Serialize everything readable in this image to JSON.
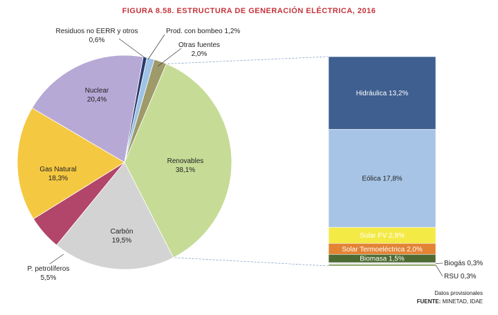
{
  "title": "FIGURA 8.58.  ESTRUCTURA DE GENERACIÓN ELÉCTRICA, 2016",
  "source": {
    "note": "Datos provisionales",
    "label": "FUENTE:",
    "value": "MINETAD, IDAE"
  },
  "chart_data": [
    {
      "type": "pie",
      "slices": [
        {
          "name": "Renovables",
          "value": 38.1,
          "value_label": "38,1%",
          "color": "#c6dc96"
        },
        {
          "name": "Carbón",
          "value": 19.5,
          "value_label": "19,5%",
          "color": "#d3d3d3"
        },
        {
          "name": "P. petrolíferos",
          "value": 5.5,
          "value_label": "5,5%",
          "color": "#b2456a"
        },
        {
          "name": "Gas Natural",
          "value": 18.3,
          "value_label": "18,3%",
          "color": "#f5c842"
        },
        {
          "name": "Nuclear",
          "value": 20.4,
          "value_label": "20,4%",
          "color": "#b7a9d6"
        },
        {
          "name": "Residuos no EERR y otros",
          "value": 0.6,
          "value_label": "0,6%",
          "color": "#2a3a6b"
        },
        {
          "name": "Prod. con bombeo",
          "value": 1.2,
          "value_label": "1,2%",
          "color": "#9dc3e6"
        },
        {
          "name": "Otras fuentes",
          "value": 2.0,
          "value_label": "2,0%",
          "color": "#9e9a6a"
        }
      ]
    },
    {
      "type": "bar",
      "stacked": true,
      "series": [
        {
          "name": "Hidráulica",
          "value": 13.2,
          "value_label": "13,2%",
          "color": "#3e5f8f"
        },
        {
          "name": "Eólica",
          "value": 17.8,
          "value_label": "17,8%",
          "color": "#a7c4e6"
        },
        {
          "name": "Solar FV",
          "value": 2.9,
          "value_label": "2,9%",
          "color": "#f4ea46"
        },
        {
          "name": "Solar Termoeléctrica",
          "value": 2.0,
          "value_label": "2,0%",
          "color": "#e38334"
        },
        {
          "name": "Biomasa",
          "value": 1.5,
          "value_label": "1,5%",
          "color": "#4e6a33"
        },
        {
          "name": "Biogás",
          "value": 0.3,
          "value_label": "0,3%",
          "color": "#e3e3e3"
        },
        {
          "name": "RSU",
          "value": 0.3,
          "value_label": "0,3%",
          "color": "#7e9a54"
        }
      ]
    }
  ]
}
